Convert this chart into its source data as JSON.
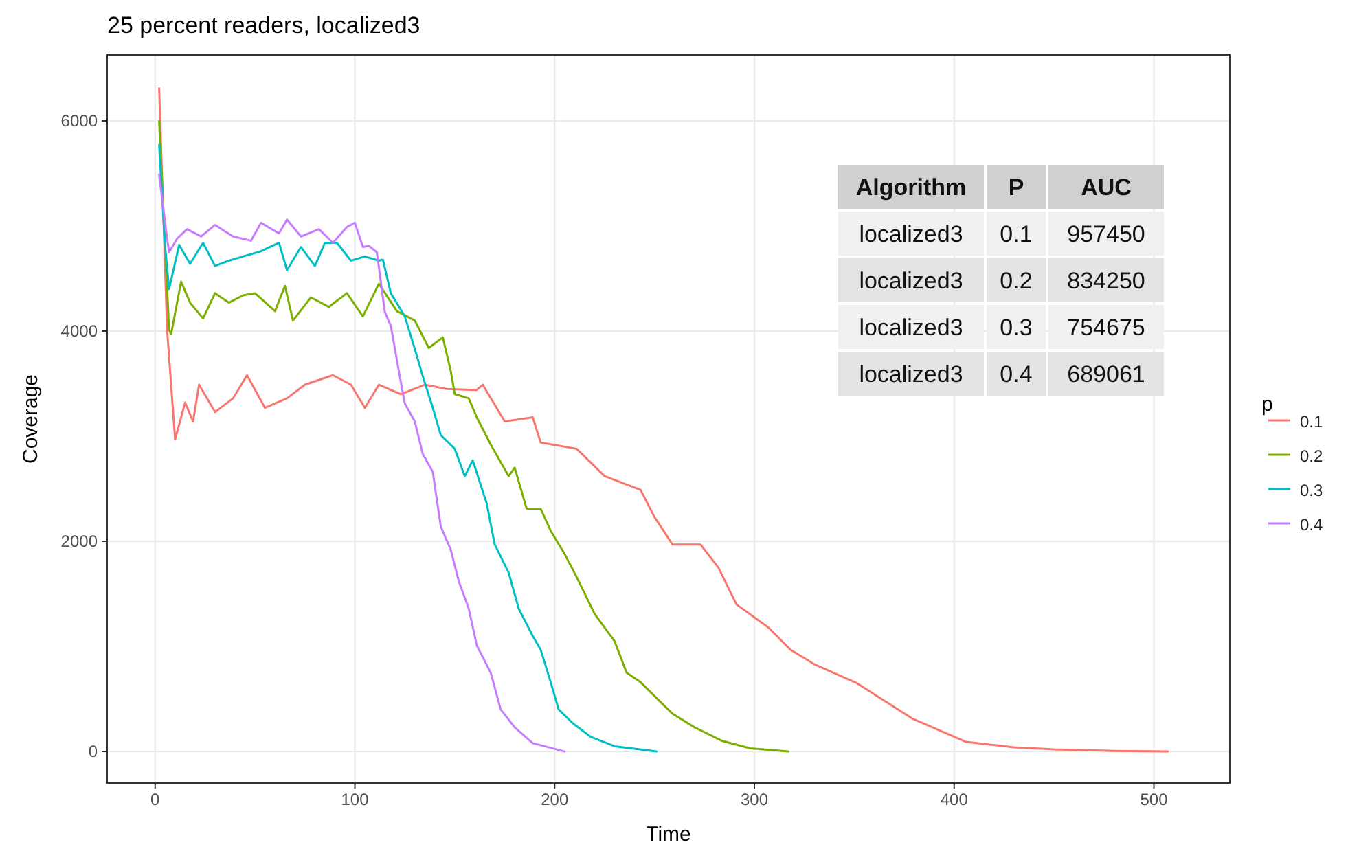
{
  "chart_data": {
    "type": "line",
    "title": "25  percent readers,  localized3",
    "xlabel": "Time",
    "ylabel": "Coverage",
    "legend_title": "p",
    "xlim": [
      -24,
      538
    ],
    "xticks": [
      0,
      100,
      200,
      300,
      400,
      500
    ],
    "ylim": [
      -300,
      6627
    ],
    "yticks": [
      0,
      2000,
      4000,
      6000
    ],
    "grid": true,
    "legend": "right",
    "series": [
      {
        "name": "0.1",
        "color": "#f8766d",
        "x": [
          2,
          6,
          10,
          15,
          19,
          22,
          30,
          39,
          46,
          55,
          66,
          75,
          89,
          98,
          105,
          112,
          123,
          135,
          146,
          161,
          164,
          175,
          189,
          193,
          211,
          225,
          243,
          250,
          259,
          273,
          282,
          291,
          307,
          318,
          330,
          351,
          379,
          406,
          430,
          450,
          480,
          507
        ],
        "values": [
          6310,
          4010,
          2970,
          3320,
          3140,
          3490,
          3230,
          3360,
          3580,
          3270,
          3360,
          3490,
          3580,
          3490,
          3270,
          3490,
          3400,
          3490,
          3450,
          3440,
          3490,
          3140,
          3180,
          2940,
          2880,
          2620,
          2490,
          2230,
          1970,
          1970,
          1750,
          1400,
          1180,
          970,
          830,
          654,
          314,
          92,
          40,
          20,
          5,
          0
        ]
      },
      {
        "name": "0.2",
        "color": "#7cae00",
        "x": [
          2,
          7,
          8,
          13,
          17.5,
          24,
          30,
          37,
          44,
          50,
          60,
          65,
          69,
          78,
          87,
          96,
          104,
          112,
          121,
          130,
          137,
          144,
          148,
          150,
          157,
          161,
          168,
          177,
          180,
          186,
          193,
          198,
          205,
          211,
          220,
          225,
          230,
          236,
          243,
          252,
          259,
          270,
          284,
          298,
          317
        ],
        "values": [
          6000,
          4010,
          3970,
          4470,
          4270,
          4120,
          4360,
          4270,
          4340,
          4360,
          4190,
          4430,
          4100,
          4320,
          4230,
          4360,
          4140,
          4450,
          4190,
          4100,
          3840,
          3940,
          3620,
          3400,
          3360,
          3180,
          2920,
          2620,
          2700,
          2310,
          2310,
          2100,
          1880,
          1660,
          1310,
          1180,
          1050,
          750,
          660,
          490,
          360,
          230,
          100,
          30,
          0
        ]
      },
      {
        "name": "0.3",
        "color": "#00bfc4",
        "x": [
          2,
          5,
          7,
          12,
          17.5,
          24,
          30,
          37,
          44,
          53,
          62,
          66,
          73,
          80,
          85,
          91,
          98,
          105,
          112,
          114,
          118,
          125,
          130,
          134,
          139,
          143,
          150,
          155,
          159,
          166,
          170,
          177,
          182,
          189,
          193,
          198,
          202,
          209,
          218,
          230,
          251
        ],
        "values": [
          5770,
          4800,
          4400,
          4820,
          4640,
          4840,
          4620,
          4670,
          4710,
          4760,
          4840,
          4580,
          4800,
          4620,
          4840,
          4840,
          4670,
          4710,
          4670,
          4680,
          4360,
          4140,
          3830,
          3570,
          3270,
          3010,
          2880,
          2620,
          2770,
          2360,
          1970,
          1700,
          1360,
          1100,
          970,
          660,
          400,
          270,
          140,
          50,
          0
        ]
      },
      {
        "name": "0.4",
        "color": "#c77cff",
        "x": [
          2,
          6,
          7,
          11,
          16,
          23,
          30,
          39,
          48,
          53,
          62,
          66,
          73,
          82,
          89,
          96,
          100,
          104,
          107,
          111,
          115,
          118,
          122,
          125,
          130,
          134,
          139,
          143,
          148,
          152,
          157,
          161,
          168,
          173,
          180,
          189,
          205
        ],
        "values": [
          5490,
          4880,
          4750,
          4880,
          4970,
          4900,
          5010,
          4900,
          4860,
          5030,
          4930,
          5060,
          4900,
          4970,
          4840,
          4990,
          5030,
          4800,
          4810,
          4750,
          4180,
          4050,
          3620,
          3310,
          3140,
          2830,
          2660,
          2140,
          1920,
          1620,
          1360,
          1010,
          750,
          400,
          230,
          80,
          0
        ]
      }
    ],
    "annotations": [
      "Algorithm",
      "P",
      "AUC",
      "localized3",
      "0.1",
      "957450",
      "localized3",
      "0.2",
      "834250",
      "localized3",
      "0.3",
      "754675",
      "localized3",
      "0.4",
      "689061"
    ]
  }
}
